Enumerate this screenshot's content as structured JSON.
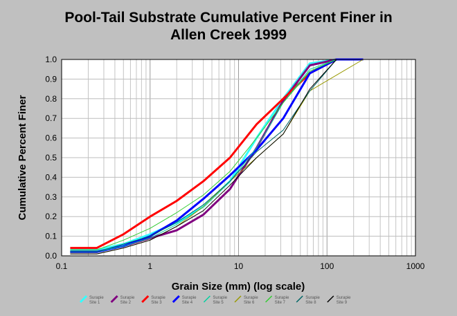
{
  "chart_data": {
    "type": "line",
    "title_line1": "Pool-Tail Substrate Cumulative Percent Finer in",
    "title_line2": "Allen Creek 1999",
    "xlabel": "Grain Size (mm) (log scale)",
    "ylabel": "Cumulative Percent Finer",
    "xscale": "log",
    "xlim": [
      0.1,
      1000
    ],
    "ylim": [
      0,
      1
    ],
    "x_ticks": [
      "0.1",
      "1",
      "10",
      "100",
      "1000"
    ],
    "y_ticks": [
      "0.0",
      "0.1",
      "0.2",
      "0.3",
      "0.4",
      "0.5",
      "0.6",
      "0.7",
      "0.8",
      "0.9",
      "1.0"
    ],
    "grid": true,
    "legend_position": "bottom",
    "series": [
      {
        "legend_line1": "Surapie",
        "legend_line2": "Site 1",
        "color": "#33ffff",
        "width": 3,
        "x": [
          0.125,
          0.25,
          0.5,
          1,
          2,
          4,
          8,
          16,
          32,
          64,
          128,
          256
        ],
        "y": [
          0.03,
          0.03,
          0.06,
          0.11,
          0.17,
          0.25,
          0.38,
          0.6,
          0.8,
          0.98,
          1.0,
          1.0
        ]
      },
      {
        "legend_line1": "Surapie",
        "legend_line2": "Site 2",
        "color": "#800080",
        "width": 3,
        "x": [
          0.125,
          0.25,
          0.5,
          1,
          2,
          4,
          8,
          16,
          32,
          64,
          128,
          256
        ],
        "y": [
          0.02,
          0.02,
          0.05,
          0.09,
          0.13,
          0.21,
          0.34,
          0.55,
          0.79,
          0.97,
          1.0,
          1.0
        ]
      },
      {
        "legend_line1": "Surapie",
        "legend_line2": "Site 3",
        "color": "#ff0000",
        "width": 3,
        "x": [
          0.125,
          0.25,
          0.5,
          1,
          2,
          4,
          8,
          16,
          32,
          64,
          128,
          256
        ],
        "y": [
          0.04,
          0.04,
          0.11,
          0.2,
          0.28,
          0.38,
          0.5,
          0.67,
          0.8,
          0.93,
          1.0,
          1.0
        ]
      },
      {
        "legend_line1": "Surapie",
        "legend_line2": "Site 4",
        "color": "#0000ff",
        "width": 3,
        "x": [
          0.125,
          0.25,
          0.5,
          1,
          2,
          4,
          8,
          16,
          32,
          64,
          128,
          256
        ],
        "y": [
          0.02,
          0.02,
          0.05,
          0.1,
          0.18,
          0.29,
          0.41,
          0.54,
          0.7,
          0.93,
          1.0,
          1.0
        ]
      },
      {
        "legend_line1": "Surapie",
        "legend_line2": "Site 5",
        "color": "#00d0a0",
        "width": 1,
        "x": [
          0.125,
          0.25,
          0.5,
          1,
          2,
          4,
          8,
          16,
          32,
          64,
          128,
          256
        ],
        "y": [
          0.02,
          0.02,
          0.05,
          0.09,
          0.16,
          0.25,
          0.38,
          0.55,
          0.78,
          0.95,
          1.0,
          1.0
        ]
      },
      {
        "legend_line1": "Surapie",
        "legend_line2": "Site 6",
        "color": "#999900",
        "width": 1,
        "x": [
          0.125,
          0.25,
          0.5,
          1,
          2,
          4,
          8,
          16,
          32,
          64,
          128,
          256
        ],
        "y": [
          0.01,
          0.01,
          0.04,
          0.08,
          0.15,
          0.25,
          0.38,
          0.5,
          0.62,
          0.84,
          0.92,
          1.0
        ]
      },
      {
        "legend_line1": "Surapie",
        "legend_line2": "Site 7",
        "color": "#33cc33",
        "width": 1,
        "x": [
          0.125,
          0.25,
          0.5,
          1,
          2,
          4,
          8,
          16,
          32,
          64,
          128,
          256
        ],
        "y": [
          0.03,
          0.03,
          0.08,
          0.14,
          0.22,
          0.31,
          0.43,
          0.6,
          0.78,
          0.94,
          1.0,
          1.0
        ]
      },
      {
        "legend_line1": "Surapie",
        "legend_line2": "Site 8",
        "color": "#006666",
        "width": 1,
        "x": [
          0.125,
          0.25,
          0.5,
          1,
          2,
          4,
          8,
          16,
          32,
          64,
          128,
          256
        ],
        "y": [
          0.02,
          0.02,
          0.06,
          0.1,
          0.17,
          0.26,
          0.38,
          0.53,
          0.64,
          0.84,
          1.0,
          1.0
        ]
      },
      {
        "legend_line1": "Surapie",
        "legend_line2": "Site 9",
        "color": "#000000",
        "width": 1,
        "x": [
          0.125,
          0.25,
          0.5,
          1,
          2,
          4,
          8,
          16,
          32,
          64,
          128,
          256
        ],
        "y": [
          0.01,
          0.01,
          0.04,
          0.08,
          0.15,
          0.23,
          0.36,
          0.5,
          0.62,
          0.85,
          1.0,
          1.0
        ]
      }
    ]
  }
}
